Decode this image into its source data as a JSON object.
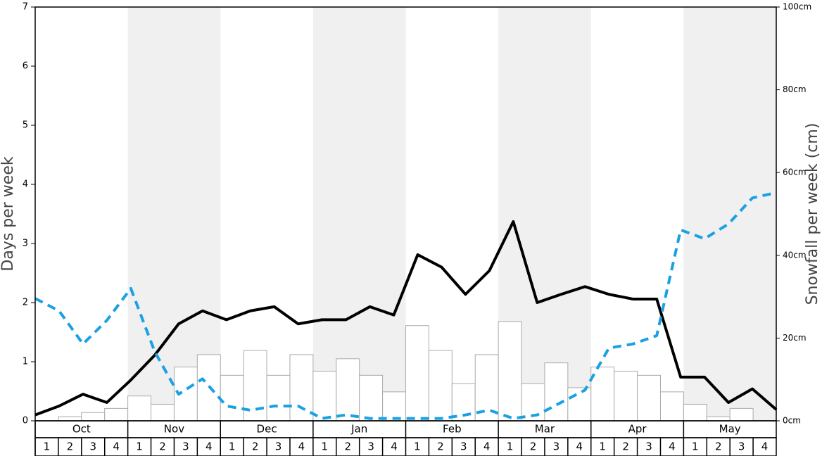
{
  "chart_data": {
    "type": "bar_line",
    "ylabel": "Days per week",
    "y2label": "Snowfall per week (cm)",
    "months": [
      "Oct",
      "Nov",
      "Dec",
      "Jan",
      "Feb",
      "Mar",
      "Apr",
      "May"
    ],
    "categories": [
      "1",
      "2",
      "3",
      "4",
      "1",
      "2",
      "3",
      "4",
      "1",
      "2",
      "3",
      "4",
      "1",
      "2",
      "3",
      "4",
      "1",
      "2",
      "3",
      "4",
      "1",
      "2",
      "3",
      "4",
      "1",
      "2",
      "3",
      "4",
      "1",
      "2",
      "3",
      "4"
    ],
    "ylim": [
      0,
      7
    ],
    "yticks": [
      0,
      1,
      2,
      3,
      4,
      5,
      6,
      7
    ],
    "y2lim": [
      0,
      100
    ],
    "y2ticks": [
      {
        "value": 0,
        "label": "0cm"
      },
      {
        "value": 20,
        "label": "20cm"
      },
      {
        "value": 40,
        "label": "40cm"
      },
      {
        "value": 60,
        "label": "60cm"
      },
      {
        "value": 80,
        "label": "80cm"
      },
      {
        "value": 100,
        "label": "100cm"
      }
    ],
    "series": [
      {
        "type": "bar",
        "axis": "y2",
        "color": "#ffffff",
        "values": [
          0,
          1,
          2,
          3,
          6,
          4,
          13,
          16,
          11,
          17,
          11,
          16,
          12,
          15,
          11,
          7,
          23,
          17,
          9,
          16,
          24,
          9,
          14,
          8,
          13,
          12,
          11,
          7,
          4,
          1,
          3,
          0
        ]
      },
      {
        "type": "line",
        "axis": "y",
        "color": "#000000",
        "values": [
          0.1,
          0.25,
          0.45,
          0.31,
          0.69,
          1.11,
          1.64,
          1.86,
          1.71,
          1.86,
          1.93,
          1.64,
          1.71,
          1.71,
          1.93,
          1.79,
          2.81,
          2.6,
          2.14,
          2.54,
          3.37,
          2.0,
          2.14,
          2.27,
          2.14,
          2.06,
          2.06,
          0.74,
          0.74,
          0.31,
          0.54,
          0.19
        ]
      },
      {
        "type": "line",
        "axis": "y",
        "dashed": true,
        "color": "#1ba1e2",
        "values": [
          2.07,
          1.86,
          1.3,
          1.7,
          2.24,
          1.17,
          0.45,
          0.71,
          0.25,
          0.18,
          0.25,
          0.25,
          0.04,
          0.1,
          0.04,
          0.04,
          0.04,
          0.04,
          0.1,
          0.18,
          0.04,
          0.1,
          0.31,
          0.52,
          1.23,
          1.3,
          1.44,
          3.23,
          3.08,
          3.33,
          3.77,
          3.86
        ]
      }
    ]
  }
}
